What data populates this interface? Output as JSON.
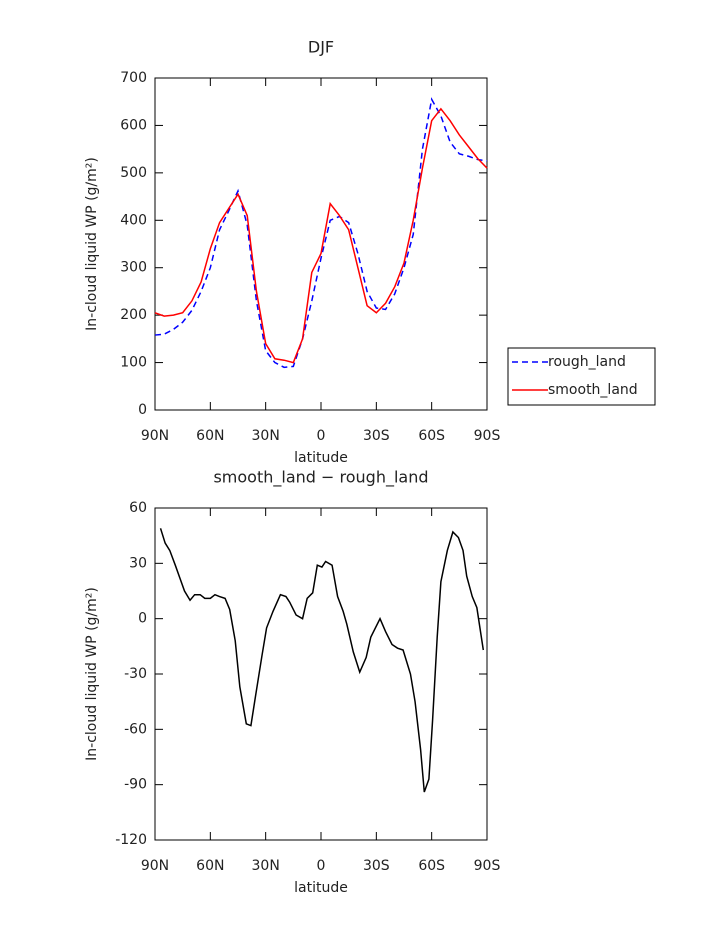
{
  "chart_data": [
    {
      "type": "line",
      "title": "DJF",
      "x_label": "latitude",
      "y_label": "In-cloud liquid WP (g/m²)",
      "x": [
        90,
        85,
        80,
        75,
        70,
        65,
        60,
        55,
        50,
        45,
        40,
        35,
        30,
        25,
        20,
        15,
        10,
        5,
        0,
        -5,
        -10,
        -15,
        -20,
        -25,
        -30,
        -35,
        -40,
        -45,
        -50,
        -55,
        -60,
        -65,
        -70,
        -75,
        -80,
        -85,
        -90
      ],
      "series": [
        {
          "name": "rough_land",
          "color": "#0000ff",
          "dashed": true,
          "values": [
            158,
            160,
            170,
            185,
            210,
            250,
            300,
            380,
            420,
            462,
            390,
            230,
            125,
            100,
            90,
            92,
            150,
            230,
            320,
            400,
            408,
            395,
            330,
            250,
            215,
            212,
            245,
            300,
            370,
            550,
            655,
            620,
            565,
            540,
            535,
            528,
            525
          ]
        },
        {
          "name": "smooth_land",
          "color": "#ff0000",
          "dashed": false,
          "values": [
            205,
            198,
            200,
            205,
            230,
            270,
            340,
            395,
            425,
            455,
            410,
            250,
            140,
            108,
            105,
            100,
            150,
            290,
            330,
            435,
            410,
            380,
            300,
            220,
            205,
            225,
            260,
            310,
            400,
            510,
            610,
            635,
            610,
            580,
            555,
            530,
            510
          ]
        }
      ],
      "xlim": [
        90,
        -90
      ],
      "xticks": [
        {
          "value": 90,
          "label": "90N"
        },
        {
          "value": 60,
          "label": "60N"
        },
        {
          "value": 30,
          "label": "30N"
        },
        0,
        {
          "value": -30,
          "label": "30S"
        },
        {
          "value": -60,
          "label": "60S"
        },
        {
          "value": -90,
          "label": "90S"
        }
      ],
      "ylim": [
        0,
        700
      ],
      "yticks": [
        0,
        100,
        200,
        300,
        400,
        500,
        600,
        700
      ],
      "legend": "outside-right"
    },
    {
      "type": "line",
      "title": "smooth_land − rough_land",
      "x_label": "latitude",
      "y_label": "In-cloud liquid WP (g/m²)",
      "x": [
        87,
        84.5,
        82,
        79,
        76.5,
        74,
        71,
        68.5,
        65.5,
        63,
        60,
        57.5,
        55,
        52,
        49.5,
        46.5,
        44,
        40.5,
        38,
        35.5,
        32,
        29.5,
        26,
        22,
        19,
        17,
        13.5,
        10,
        7.5,
        4.5,
        2,
        -0.5,
        -2.5,
        -6,
        -9,
        -12,
        -14,
        -17.5,
        -21,
        -24.5,
        -27,
        -32,
        -35,
        -38.5,
        -41.5,
        -44.5,
        -48.5,
        -51,
        -54,
        -56,
        -58.5,
        -60.5,
        -63,
        -65,
        -68.5,
        -71.5,
        -74.5,
        -77,
        -79,
        -82,
        -84.5,
        -88
      ],
      "series": [
        {
          "name": null,
          "color": "#000000",
          "dashed": false,
          "values": [
            49,
            41,
            37,
            29,
            22,
            15,
            10,
            13,
            13,
            11,
            11,
            13,
            12,
            11,
            5,
            -12,
            -37,
            -57,
            -58,
            -42,
            -20,
            -5,
            4,
            13,
            12,
            9,
            2,
            0,
            11,
            14,
            29,
            28,
            31,
            29,
            12,
            4,
            -3,
            -18,
            -29,
            -21,
            -10,
            0,
            -7,
            -14,
            -16,
            -17,
            -30,
            -45,
            -71,
            -94,
            -87,
            -55,
            -10,
            20,
            37,
            47,
            44,
            37,
            23,
            12,
            6,
            -17
          ]
        }
      ],
      "xlim": [
        90,
        -90
      ],
      "xticks": [
        {
          "value": 90,
          "label": "90N"
        },
        {
          "value": 60,
          "label": "60N"
        },
        {
          "value": 30,
          "label": "30N"
        },
        0,
        {
          "value": -30,
          "label": "30S"
        },
        {
          "value": -60,
          "label": "60S"
        },
        {
          "value": -90,
          "label": "90S"
        }
      ],
      "ylim": [
        -120,
        60
      ],
      "yticks": [
        -120,
        -90,
        -60,
        -30,
        0,
        30,
        60
      ]
    }
  ]
}
